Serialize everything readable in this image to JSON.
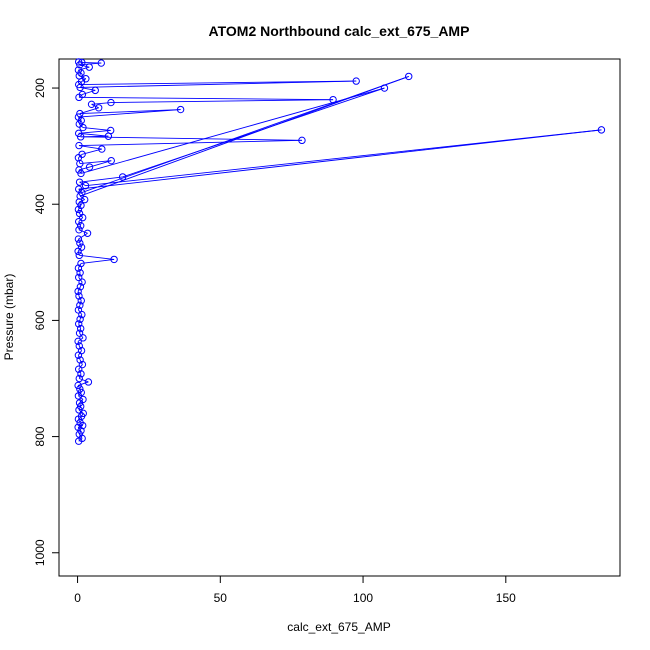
{
  "chart_data": {
    "type": "line",
    "title": "ATOM2 Northbound calc_ext_675_AMP",
    "xlabel": "calc_ext_675_AMP",
    "ylabel": "Pressure (mbar)",
    "xlim": [
      -6.5,
      190
    ],
    "ylim": [
      1040,
      150
    ],
    "y_reversed": true,
    "x_ticks": [
      0,
      50,
      100,
      150
    ],
    "y_ticks": [
      200,
      400,
      600,
      800,
      1000
    ],
    "grid": false,
    "legend": "none",
    "series": [
      {
        "marker": "open-circle",
        "points": [
          {
            "x": 0.4,
            "y": 808
          },
          {
            "x": 1.6,
            "y": 803
          },
          {
            "x": 0.6,
            "y": 796
          },
          {
            "x": 1.2,
            "y": 790
          },
          {
            "x": 0.2,
            "y": 784
          },
          {
            "x": 1.8,
            "y": 781
          },
          {
            "x": 0.9,
            "y": 776
          },
          {
            "x": 0.3,
            "y": 770
          },
          {
            "x": 1.4,
            "y": 765
          },
          {
            "x": 2.0,
            "y": 760
          },
          {
            "x": 0.5,
            "y": 754
          },
          {
            "x": 1.1,
            "y": 748
          },
          {
            "x": 0.7,
            "y": 742
          },
          {
            "x": 1.9,
            "y": 736
          },
          {
            "x": 0.3,
            "y": 730
          },
          {
            "x": 1.3,
            "y": 724
          },
          {
            "x": 0.8,
            "y": 718
          },
          {
            "x": 0.2,
            "y": 712
          },
          {
            "x": 3.8,
            "y": 706
          },
          {
            "x": 0.6,
            "y": 700
          },
          {
            "x": 1.2,
            "y": 692
          },
          {
            "x": 0.4,
            "y": 684
          },
          {
            "x": 1.7,
            "y": 676
          },
          {
            "x": 0.9,
            "y": 668
          },
          {
            "x": 0.3,
            "y": 660
          },
          {
            "x": 1.4,
            "y": 652
          },
          {
            "x": 0.6,
            "y": 644
          },
          {
            "x": 0.2,
            "y": 636
          },
          {
            "x": 1.9,
            "y": 630
          },
          {
            "x": 0.7,
            "y": 622
          },
          {
            "x": 1.1,
            "y": 614
          },
          {
            "x": 0.4,
            "y": 606
          },
          {
            "x": 0.9,
            "y": 598
          },
          {
            "x": 1.5,
            "y": 590
          },
          {
            "x": 0.3,
            "y": 582
          },
          {
            "x": 0.8,
            "y": 574
          },
          {
            "x": 1.3,
            "y": 566
          },
          {
            "x": 0.5,
            "y": 558
          },
          {
            "x": 0.2,
            "y": 550
          },
          {
            "x": 1.0,
            "y": 542
          },
          {
            "x": 1.6,
            "y": 534
          },
          {
            "x": 0.4,
            "y": 526
          },
          {
            "x": 0.9,
            "y": 518
          },
          {
            "x": 0.3,
            "y": 510
          },
          {
            "x": 1.2,
            "y": 502
          },
          {
            "x": 12.8,
            "y": 495
          },
          {
            "x": 0.6,
            "y": 488
          },
          {
            "x": 0.2,
            "y": 481
          },
          {
            "x": 1.4,
            "y": 474
          },
          {
            "x": 0.8,
            "y": 467
          },
          {
            "x": 0.3,
            "y": 460
          },
          {
            "x": 3.5,
            "y": 450
          },
          {
            "x": 0.5,
            "y": 444
          },
          {
            "x": 1.1,
            "y": 437
          },
          {
            "x": 0.4,
            "y": 430
          },
          {
            "x": 1.8,
            "y": 423
          },
          {
            "x": 0.7,
            "y": 416
          },
          {
            "x": 0.3,
            "y": 409
          },
          {
            "x": 1.2,
            "y": 402
          },
          {
            "x": 0.6,
            "y": 396
          },
          {
            "x": 2.5,
            "y": 392
          },
          {
            "x": 0.9,
            "y": 386
          },
          {
            "x": 116.0,
            "y": 180
          },
          {
            "x": 1.5,
            "y": 380
          },
          {
            "x": 0.4,
            "y": 374
          },
          {
            "x": 183.5,
            "y": 272
          },
          {
            "x": 2.8,
            "y": 368
          },
          {
            "x": 0.7,
            "y": 362
          },
          {
            "x": 15.8,
            "y": 353
          },
          {
            "x": 107.5,
            "y": 200
          },
          {
            "x": 1.2,
            "y": 347
          },
          {
            "x": 0.5,
            "y": 341
          },
          {
            "x": 4.2,
            "y": 336
          },
          {
            "x": 11.8,
            "y": 325
          },
          {
            "x": 0.8,
            "y": 330
          },
          {
            "x": 0.3,
            "y": 320
          },
          {
            "x": 1.6,
            "y": 314
          },
          {
            "x": 8.5,
            "y": 305
          },
          {
            "x": 0.5,
            "y": 299
          },
          {
            "x": 78.6,
            "y": 290
          },
          {
            "x": 1.1,
            "y": 284
          },
          {
            "x": 10.8,
            "y": 283
          },
          {
            "x": 0.4,
            "y": 278
          },
          {
            "x": 11.6,
            "y": 273
          },
          {
            "x": 1.9,
            "y": 268
          },
          {
            "x": 0.6,
            "y": 262
          },
          {
            "x": 1.3,
            "y": 256
          },
          {
            "x": 0.3,
            "y": 250
          },
          {
            "x": 36.1,
            "y": 237
          },
          {
            "x": 0.8,
            "y": 244
          },
          {
            "x": 7.4,
            "y": 234
          },
          {
            "x": 4.9,
            "y": 228
          },
          {
            "x": 11.7,
            "y": 225
          },
          {
            "x": 89.5,
            "y": 220
          },
          {
            "x": 0.5,
            "y": 216
          },
          {
            "x": 1.7,
            "y": 211
          },
          {
            "x": 6.2,
            "y": 204
          },
          {
            "x": 0.9,
            "y": 199
          },
          {
            "x": 97.6,
            "y": 188
          },
          {
            "x": 0.4,
            "y": 194
          },
          {
            "x": 1.4,
            "y": 189
          },
          {
            "x": 2.9,
            "y": 184
          },
          {
            "x": 0.6,
            "y": 179
          },
          {
            "x": 1.2,
            "y": 174
          },
          {
            "x": 0.3,
            "y": 169
          },
          {
            "x": 4.1,
            "y": 164
          },
          {
            "x": 0.8,
            "y": 160
          },
          {
            "x": 8.3,
            "y": 157
          },
          {
            "x": 1.5,
            "y": 156
          },
          {
            "x": 0.4,
            "y": 155
          }
        ]
      }
    ]
  },
  "colors": {
    "series": "#0000ff",
    "axis": "#000000",
    "background": "#ffffff"
  }
}
